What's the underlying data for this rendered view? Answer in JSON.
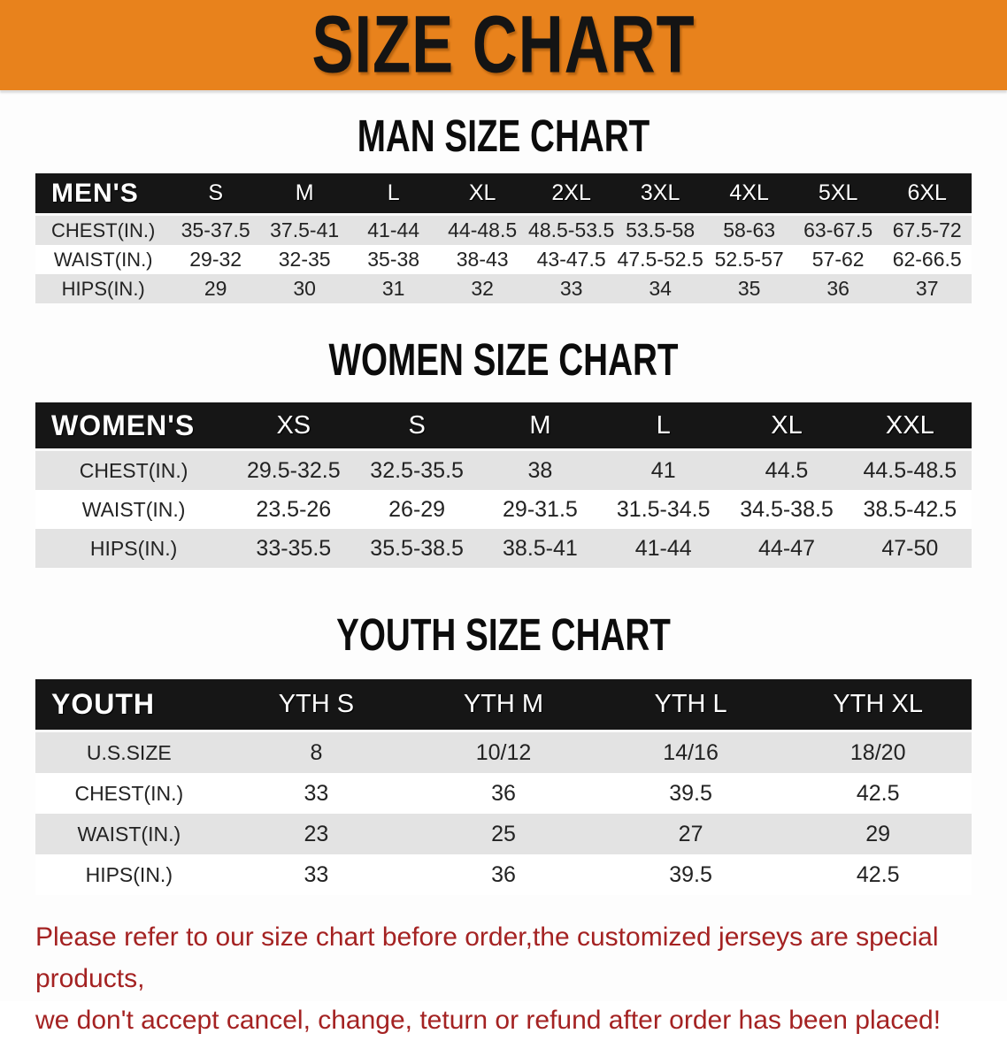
{
  "banner": {
    "title": "SIZE CHART"
  },
  "colors": {
    "banner_bg": "#E8821C",
    "header_bar": "#161616",
    "row_stripe": "#E3E3E3",
    "notice_text": "#A42222"
  },
  "sections": [
    {
      "slug": "man",
      "heading": "MAN SIZE CHART",
      "header_label": "MEN'S",
      "columns": [
        "S",
        "M",
        "L",
        "XL",
        "2XL",
        "3XL",
        "4XL",
        "5XL",
        "6XL"
      ],
      "rows": [
        {
          "label": "CHEST(IN.)",
          "values": [
            "35-37.5",
            "37.5-41",
            "41-44",
            "44-48.5",
            "48.5-53.5",
            "53.5-58",
            "58-63",
            "63-67.5",
            "67.5-72"
          ]
        },
        {
          "label": "WAIST(IN.)",
          "values": [
            "29-32",
            "32-35",
            "35-38",
            "38-43",
            "43-47.5",
            "47.5-52.5",
            "52.5-57",
            "57-62",
            "62-66.5"
          ]
        },
        {
          "label": "HIPS(IN.)",
          "values": [
            "29",
            "30",
            "31",
            "32",
            "33",
            "34",
            "35",
            "36",
            "37"
          ]
        }
      ]
    },
    {
      "slug": "women",
      "heading": "WOMEN SIZE CHART",
      "header_label": "WOMEN'S",
      "columns": [
        "XS",
        "S",
        "M",
        "L",
        "XL",
        "XXL"
      ],
      "rows": [
        {
          "label": "CHEST(IN.)",
          "values": [
            "29.5-32.5",
            "32.5-35.5",
            "38",
            "41",
            "44.5",
            "44.5-48.5"
          ]
        },
        {
          "label": "WAIST(IN.)",
          "values": [
            "23.5-26",
            "26-29",
            "29-31.5",
            "31.5-34.5",
            "34.5-38.5",
            "38.5-42.5"
          ]
        },
        {
          "label": "HIPS(IN.)",
          "values": [
            "33-35.5",
            "35.5-38.5",
            "38.5-41",
            "41-44",
            "44-47",
            "47-50"
          ]
        }
      ]
    },
    {
      "slug": "youth",
      "heading": "YOUTH SIZE CHART",
      "header_label": "YOUTH",
      "columns": [
        "YTH S",
        "YTH M",
        "YTH L",
        "YTH XL"
      ],
      "rows": [
        {
          "label": "U.S.SIZE",
          "values": [
            "8",
            "10/12",
            "14/16",
            "18/20"
          ]
        },
        {
          "label": "CHEST(IN.)",
          "values": [
            "33",
            "36",
            "39.5",
            "42.5"
          ]
        },
        {
          "label": "WAIST(IN.)",
          "values": [
            "23",
            "25",
            "27",
            "29"
          ]
        },
        {
          "label": "HIPS(IN.)",
          "values": [
            "33",
            "36",
            "39.5",
            "42.5"
          ]
        }
      ]
    }
  ],
  "footer": {
    "line1": "Please refer to our size chart before order,the customized jerseys are special products,",
    "line2": "we don't accept cancel, change, teturn or refund after order has been placed!"
  }
}
